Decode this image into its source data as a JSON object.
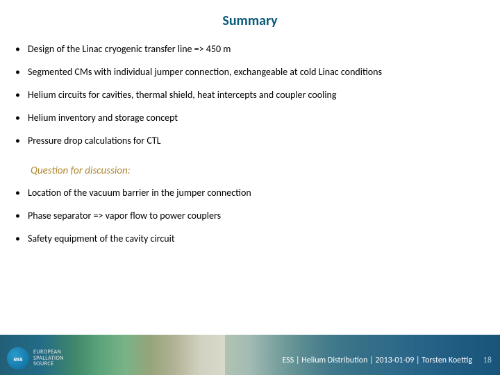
{
  "title": "Summary",
  "mainBullets": [
    "Design of the Linac cryogenic transfer line => 450 m",
    "Segmented CMs with individual jumper connection, exchangeable at cold Linac conditions",
    "Helium circuits for cavities, thermal shield, heat intercepts and coupler cooling",
    "Helium inventory and storage concept",
    "Pressure drop calculations for CTL"
  ],
  "discussionHeader": "Question for discussion:",
  "discussionBullets": [
    "Location of the vacuum barrier in the jumper connection",
    "Phase separator => vapor flow to power couplers",
    "Safety equipment of the cavity circuit"
  ],
  "logoAbbr": "ess",
  "logoLine1": "EUROPEAN",
  "logoLine2": "SPALLATION",
  "logoLine3": "SOURCE",
  "footerText": "ESS | Helium Distribution | 2013-01-09 |   Torsten Koettig",
  "pageNumber": "18",
  "colors": {
    "titleColor": "#0a5a7a",
    "discussionColor": "#b08830",
    "textColor": "#000000",
    "footerTextColor": "#ffffff",
    "pageNumColor": "#a0c8d8"
  },
  "fonts": {
    "titleSize": 20,
    "bodySize": 14,
    "discussionSize": 15,
    "footerSize": 12
  }
}
